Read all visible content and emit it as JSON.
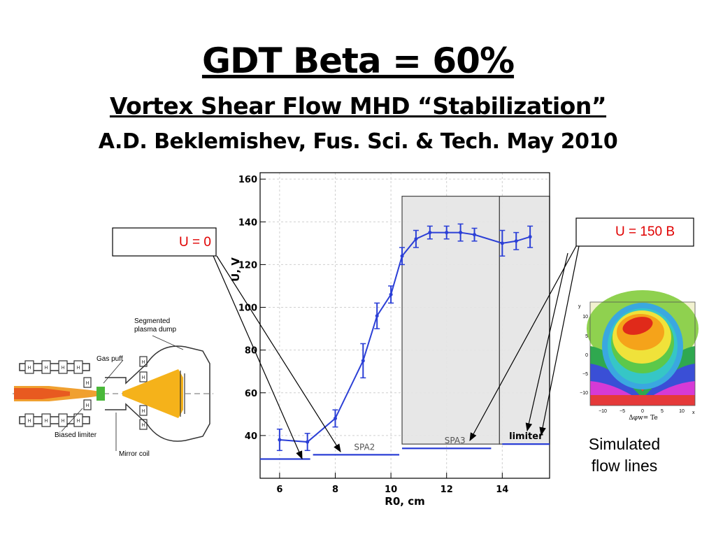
{
  "slide": {
    "title": "GDT Beta = 60%",
    "subtitle": "Vortex Shear Flow MHD “Stabilization”",
    "citation": "A.D. Beklemishev, Fus. Sci. & Tech. May 2010"
  },
  "callouts": {
    "left": "U = 0",
    "right": "U = 150 B",
    "simulated_caption": [
      "Simulated",
      "flow lines"
    ]
  },
  "device_diagram": {
    "labels": [
      "Segmented",
      "plasma dump",
      "Gas puff",
      "Biased limiter",
      "Mirror coil"
    ]
  },
  "simulation": {
    "y_label": "y",
    "x_label": "x",
    "y_ticks": [
      "10",
      "5",
      "0",
      "−5",
      "−10"
    ],
    "x_ticks": [
      "−10",
      "−5",
      "0",
      "5",
      "10"
    ],
    "caption": "Δφw= Te"
  },
  "chart_data": {
    "type": "line",
    "xlabel": "R0, cm",
    "ylabel": "U, V",
    "xlim": [
      5.3,
      15.7
    ],
    "ylim": [
      20,
      163
    ],
    "x_ticks": [
      6,
      8,
      10,
      12,
      14
    ],
    "y_ticks": [
      40,
      60,
      80,
      100,
      120,
      140,
      160
    ],
    "grid": true,
    "color": "#2b3fd6",
    "series": [
      {
        "x": [
          6,
          7,
          8,
          9,
          9.5,
          10,
          10.4,
          10.9,
          11.4,
          12,
          12.5,
          13,
          14,
          14.5,
          15
        ],
        "y": [
          38,
          37,
          48,
          75,
          96,
          106,
          124,
          132,
          135,
          135,
          135,
          134,
          130,
          131,
          133
        ],
        "err": [
          5,
          4,
          4,
          8,
          6,
          4,
          4,
          4,
          3,
          3,
          4,
          3,
          6,
          4,
          5
        ]
      }
    ],
    "regions": [
      {
        "label": "",
        "x": [
          10.4,
          13.9
        ],
        "y": [
          36,
          152
        ]
      },
      {
        "label": "",
        "x": [
          13.9,
          15.7
        ],
        "y": [
          36,
          152
        ]
      }
    ],
    "segments": [
      {
        "label": "",
        "x": [
          5.3,
          7.1
        ],
        "y": 29
      },
      {
        "label": "SPA2",
        "x": [
          7.2,
          10.3
        ],
        "y": 31
      },
      {
        "label": "SPA3",
        "x": [
          10.4,
          13.6
        ],
        "y": 34
      },
      {
        "label": "limiter",
        "x": [
          14.0,
          15.7
        ],
        "y": 36
      }
    ]
  }
}
